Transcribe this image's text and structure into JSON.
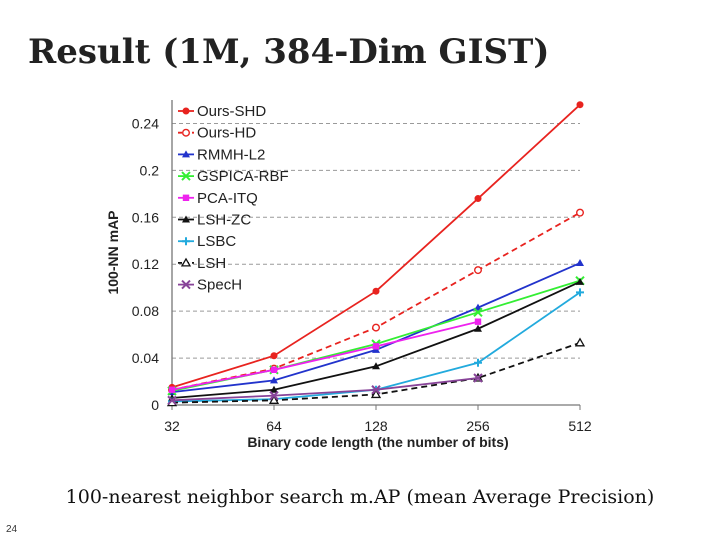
{
  "slide": {
    "title": "Result (1M, 384-Dim GIST)",
    "caption": "100-nearest neighbor search m.AP (mean Average Precision)",
    "page_number": "24"
  },
  "chart_data": {
    "type": "line",
    "title": "",
    "xlabel": "Binary code length (the number of bits)",
    "ylabel": "100-NN mAP",
    "categories": [
      "32",
      "64",
      "128",
      "256",
      "512"
    ],
    "yticks": [
      "0",
      "0.04",
      "0.08",
      "0.12",
      "0.16",
      "0.2",
      "0.24"
    ],
    "ylim": [
      0,
      0.26
    ],
    "grid": true,
    "legend_position": "top-left",
    "series": [
      {
        "name": "Ours-SHD",
        "color": "#e8231f",
        "dash": false,
        "marker": "dot",
        "values": [
          0.015,
          0.042,
          0.097,
          0.176,
          0.256
        ]
      },
      {
        "name": "Ours-HD",
        "color": "#e8231f",
        "dash": true,
        "marker": "circle",
        "values": [
          0.013,
          0.031,
          0.066,
          0.115,
          0.164
        ]
      },
      {
        "name": "RMMH-L2",
        "color": "#2233cc",
        "dash": false,
        "marker": "triangle",
        "values": [
          0.011,
          0.021,
          0.047,
          0.083,
          0.121
        ]
      },
      {
        "name": "GSPICA-RBF",
        "color": "#33ee33",
        "dash": false,
        "marker": "x",
        "values": [
          0.012,
          0.03,
          0.052,
          0.079,
          0.106
        ]
      },
      {
        "name": "PCA-ITQ",
        "color": "#ee22ee",
        "dash": false,
        "marker": "square",
        "values": [
          0.013,
          0.03,
          0.05,
          0.071,
          null
        ]
      },
      {
        "name": "LSH-ZC",
        "color": "#111111",
        "dash": false,
        "marker": "triangle",
        "values": [
          0.006,
          0.013,
          0.033,
          0.065,
          0.105
        ]
      },
      {
        "name": "LSBC",
        "color": "#22aadd",
        "dash": false,
        "marker": "plus",
        "values": [
          0.003,
          0.005,
          0.013,
          0.036,
          0.096
        ]
      },
      {
        "name": "LSH",
        "color": "#111111",
        "dash": true,
        "marker": "triangle-open",
        "values": [
          0.002,
          0.004,
          0.009,
          0.023,
          0.053
        ]
      },
      {
        "name": "SpecH",
        "color": "#884499",
        "dash": false,
        "marker": "x",
        "values": [
          0.004,
          0.008,
          0.013,
          0.023,
          null
        ]
      }
    ]
  }
}
